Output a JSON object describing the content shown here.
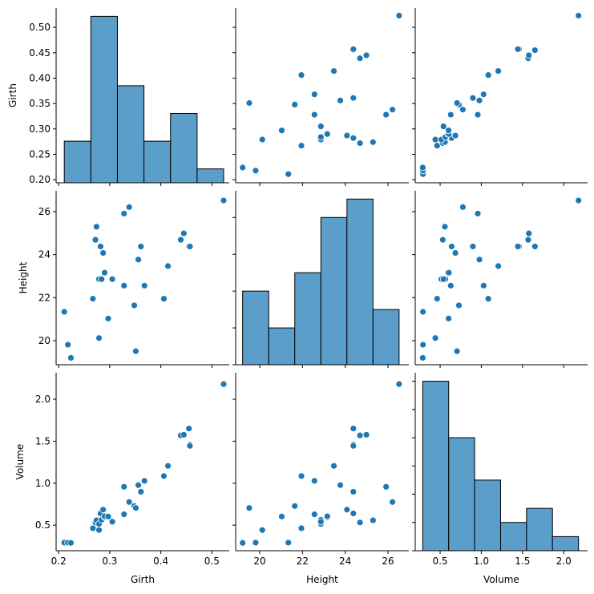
{
  "chart_data": {
    "type": "pairplot",
    "variables": [
      "Girth",
      "Height",
      "Volume"
    ],
    "color": "#1f77b4",
    "hist_color": "#5b9ec9",
    "data": {
      "Girth": [
        0.211,
        0.218,
        0.224,
        0.267,
        0.272,
        0.274,
        0.279,
        0.279,
        0.282,
        0.284,
        0.287,
        0.29,
        0.29,
        0.297,
        0.305,
        0.328,
        0.328,
        0.338,
        0.348,
        0.351,
        0.356,
        0.361,
        0.368,
        0.406,
        0.414,
        0.439,
        0.445,
        0.455,
        0.457,
        0.457,
        0.523
      ],
      "Height": [
        21.34,
        19.81,
        19.2,
        21.95,
        24.69,
        25.3,
        20.12,
        22.86,
        24.38,
        22.86,
        24.08,
        23.16,
        23.16,
        21.03,
        22.86,
        22.56,
        25.91,
        26.21,
        21.64,
        19.51,
        23.77,
        24.38,
        22.56,
        21.95,
        23.47,
        24.69,
        24.99,
        24.38,
        24.38,
        24.38,
        26.52
      ],
      "Volume": [
        0.292,
        0.292,
        0.289,
        0.464,
        0.532,
        0.558,
        0.442,
        0.515,
        0.64,
        0.564,
        0.685,
        0.595,
        0.606,
        0.603,
        0.541,
        0.629,
        0.957,
        0.776,
        0.728,
        0.705,
        0.977,
        0.898,
        1.028,
        1.085,
        1.206,
        1.569,
        1.577,
        1.651,
        1.458,
        1.444,
        2.18
      ]
    },
    "histograms": {
      "Girth": {
        "edges": [
          0.211,
          0.263,
          0.315,
          0.367,
          0.419,
          0.471,
          0.523
        ],
        "counts": [
          3,
          12,
          7,
          3,
          5,
          1
        ]
      },
      "Height": {
        "edges": [
          19.2,
          20.42,
          21.64,
          22.86,
          24.08,
          25.3,
          26.52
        ],
        "counts": [
          4,
          2,
          5,
          8,
          9,
          3
        ]
      },
      "Volume": {
        "edges": [
          0.289,
          0.604,
          0.919,
          1.234,
          1.549,
          1.864,
          2.18
        ],
        "counts": [
          12,
          8,
          5,
          2,
          3,
          1
        ]
      }
    },
    "axes": {
      "Girth": {
        "range": [
          0.195,
          0.534
        ],
        "yrange": [
          0.194,
          0.538
        ],
        "xticks": [
          "0.2",
          "0.3",
          "0.4",
          "0.5"
        ],
        "yticks": [
          "0.20",
          "0.25",
          "0.30",
          "0.35",
          "0.40",
          "0.45",
          "0.50"
        ]
      },
      "Height": {
        "range": [
          18.875,
          26.975
        ],
        "yrange": [
          18.88,
          26.97
        ],
        "xticks": [
          "20",
          "22",
          "24",
          "26"
        ],
        "yticks": [
          "20",
          "22",
          "24",
          "26"
        ]
      },
      "Volume": {
        "range": [
          0.198,
          2.29
        ],
        "yrange": [
          0.196,
          2.315
        ],
        "xticks": [
          "0.5",
          "1.0",
          "1.5",
          "2.0"
        ],
        "yticks": [
          "0.5",
          "1.0",
          "1.5",
          "2.0"
        ]
      }
    },
    "grid": false
  }
}
